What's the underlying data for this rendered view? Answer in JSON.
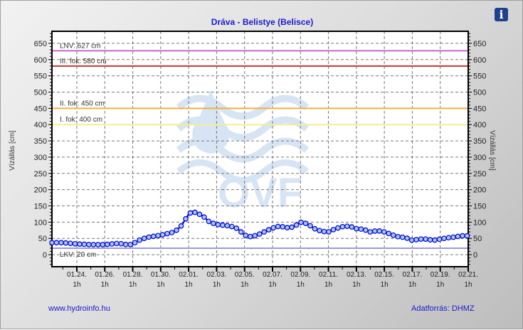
{
  "title": "Dráva - Belistye (Belisce)",
  "footer": {
    "left": "www.hydroinfo.hu",
    "right": "Adatforrás: DHMZ"
  },
  "info_icon": "info-icon",
  "chart_data": {
    "type": "line",
    "title": "Dráva - Belistye (Belisce)",
    "ylabel": "Vízállás [cm]",
    "ylabel_right": "Vízállás [cm]",
    "ylim": [
      -37,
      687
    ],
    "yticks": [
      0,
      50,
      100,
      150,
      200,
      250,
      300,
      350,
      400,
      450,
      500,
      550,
      600,
      650
    ],
    "xlim_days_from_0124": [
      -1.78,
      28
    ],
    "xticks": [
      {
        "d": 0,
        "label": "01.24.",
        "sub": "1h"
      },
      {
        "d": 2,
        "label": "01.26.",
        "sub": "1h"
      },
      {
        "d": 4,
        "label": "01.28.",
        "sub": "1h"
      },
      {
        "d": 6,
        "label": "01.30.",
        "sub": "1h"
      },
      {
        "d": 8,
        "label": "02.01.",
        "sub": "1h"
      },
      {
        "d": 10,
        "label": "02.03.",
        "sub": "1h"
      },
      {
        "d": 12,
        "label": "02.05.",
        "sub": "1h"
      },
      {
        "d": 14,
        "label": "02.07.",
        "sub": "1h"
      },
      {
        "d": 16,
        "label": "02.09.",
        "sub": "1h"
      },
      {
        "d": 18,
        "label": "02.11.",
        "sub": "1h"
      },
      {
        "d": 20,
        "label": "02.13.",
        "sub": "1h"
      },
      {
        "d": 22,
        "label": "02.15.",
        "sub": "1h"
      },
      {
        "d": 24,
        "label": "02.17.",
        "sub": "1h"
      },
      {
        "d": 26,
        "label": "02.19.",
        "sub": "1h"
      },
      {
        "d": 28,
        "label": "02.21.",
        "sub": "1h"
      }
    ],
    "grid": true,
    "thresholds": [
      {
        "label": "LNV: 627 cm",
        "value": 627,
        "color": "#cc66cc"
      },
      {
        "label": "III. fok: 580 cm",
        "value": 580,
        "color": "#cc3333"
      },
      {
        "label": "II. fok: 450 cm",
        "value": 450,
        "color": "#f0b040"
      },
      {
        "label": "I. fok: 400 cm",
        "value": 400,
        "color": "#f4ee90"
      },
      {
        "label": "LKV: 20 cm",
        "value": 20,
        "color": "#9999dd"
      }
    ],
    "series": [
      {
        "name": "Vízállás",
        "color": "#0000cc",
        "marker_fill": "#a8c8f8",
        "x": [
          -1.78,
          -1,
          0,
          1,
          2,
          3,
          3.7,
          4,
          4.5,
          5,
          6,
          7,
          7.5,
          8,
          8.3,
          9,
          9.5,
          10,
          11,
          11.5,
          12,
          12.5,
          13,
          14,
          14.5,
          15,
          15.5,
          16,
          16.5,
          17,
          17.5,
          18,
          18.5,
          19,
          19.5,
          20,
          20.5,
          21,
          21.5,
          22,
          22.5,
          23,
          23.5,
          24,
          24.5,
          25,
          25.5,
          26,
          26.5,
          27,
          27.5,
          28
        ],
        "y": [
          37,
          37,
          33,
          31,
          31,
          35,
          30,
          33,
          45,
          53,
          60,
          70,
          90,
          125,
          133,
          120,
          100,
          93,
          88,
          80,
          60,
          55,
          62,
          82,
          88,
          83,
          85,
          100,
          95,
          80,
          72,
          70,
          80,
          86,
          88,
          80,
          78,
          70,
          74,
          70,
          62,
          55,
          53,
          44,
          48,
          48,
          44,
          48,
          52,
          54,
          58,
          58
        ]
      }
    ]
  }
}
